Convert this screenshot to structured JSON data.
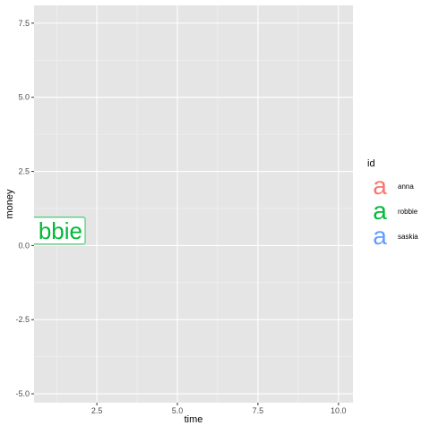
{
  "chart_data": {
    "type": "scatter",
    "title": "",
    "xlabel": "time",
    "ylabel": "money",
    "xlim": [
      0.55,
      10.45
    ],
    "ylim": [
      -5.3,
      8.1
    ],
    "xticks": [
      2.5,
      5.0,
      7.5,
      10.0
    ],
    "xtick_labels": [
      "2.5",
      "5.0",
      "7.5",
      "10.0"
    ],
    "yticks": [
      7.5,
      5.0,
      2.5,
      0.0,
      -2.5,
      -5.0
    ],
    "ytick_labels": [
      "7.5",
      "5.0",
      "2.5",
      "0.0",
      "-2.5",
      "-5.0"
    ],
    "grid": true,
    "background": "#e5e5e5",
    "legend": {
      "title": "id",
      "placement": "right",
      "key_glyph": "a",
      "entries": [
        {
          "name": "anna",
          "color": "#F8766D"
        },
        {
          "name": "robbie",
          "color": "#00BA38"
        },
        {
          "name": "saskia",
          "color": "#619CFF"
        }
      ]
    },
    "labels": [
      {
        "series": "robbie",
        "text": "bbie",
        "full_text": "robbie",
        "x": 1.5,
        "y": 0.5,
        "color": "#00BA38"
      }
    ]
  }
}
